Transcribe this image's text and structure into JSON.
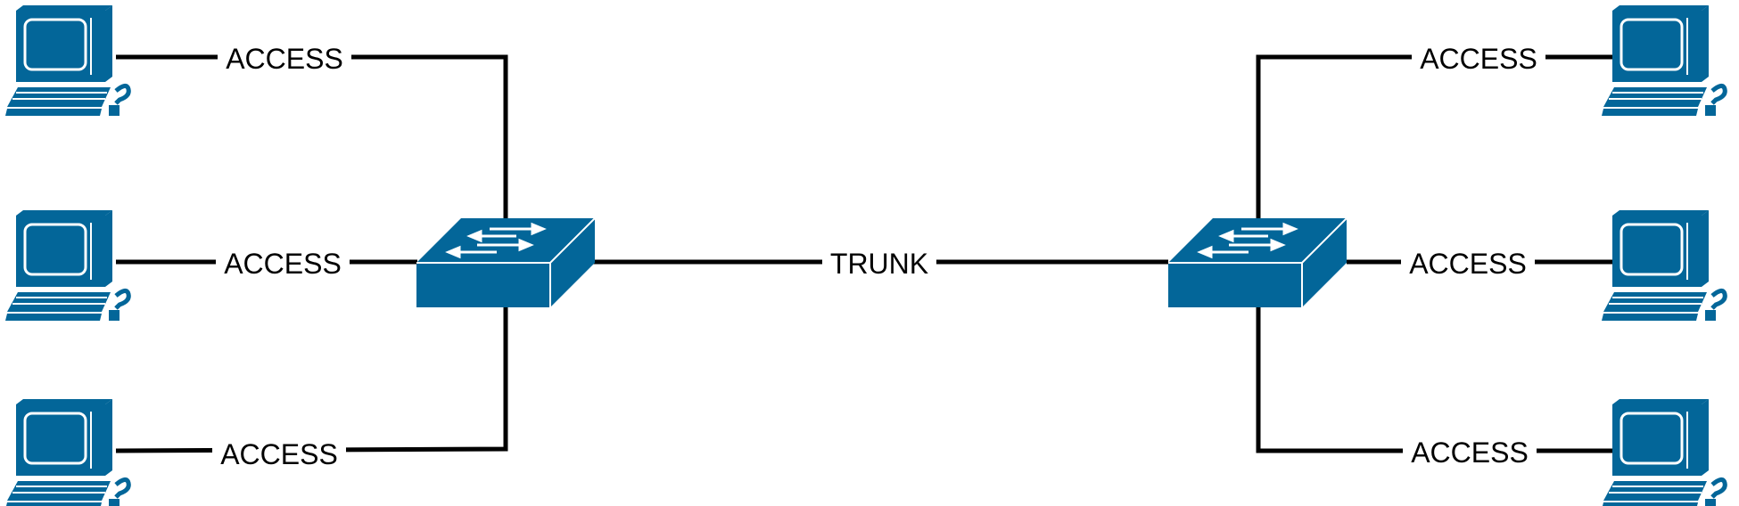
{
  "colors": {
    "device": "#036699",
    "device_highlight": "#ffffff",
    "wire": "#000000",
    "background": "#ffffff"
  },
  "icons": {
    "host": "desktop-computer-icon",
    "switch": "network-switch-icon"
  },
  "links": {
    "left_top": "ACCESS",
    "left_middle": "ACCESS",
    "left_bottom": "ACCESS",
    "trunk": "TRUNK",
    "right_top": "ACCESS",
    "right_middle": "ACCESS",
    "right_bottom": "ACCESS"
  }
}
